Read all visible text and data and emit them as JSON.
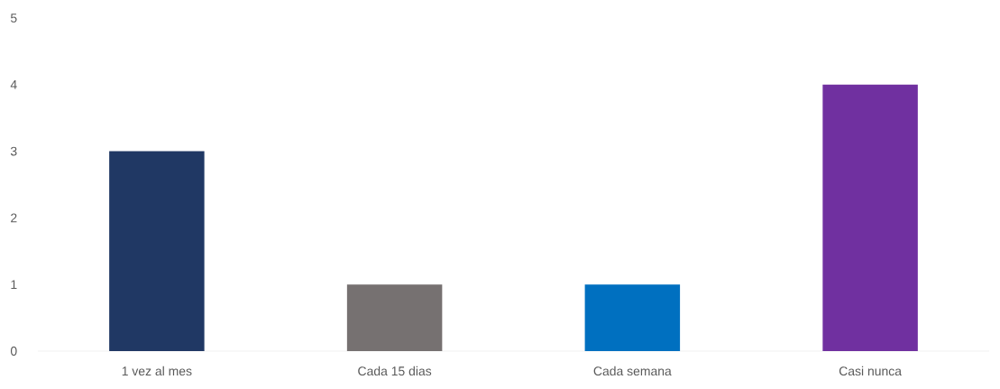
{
  "chart_data": {
    "type": "bar",
    "categories": [
      "1 vez al mes",
      "Cada 15 dias",
      "Cada semana",
      "Casi nunca"
    ],
    "values": [
      3,
      1,
      1,
      4
    ],
    "colors": [
      "#203864",
      "#767171",
      "#0070c0",
      "#7030a0"
    ],
    "ylim": [
      0,
      5
    ],
    "yticks": [
      0,
      1,
      2,
      3,
      4,
      5
    ]
  }
}
